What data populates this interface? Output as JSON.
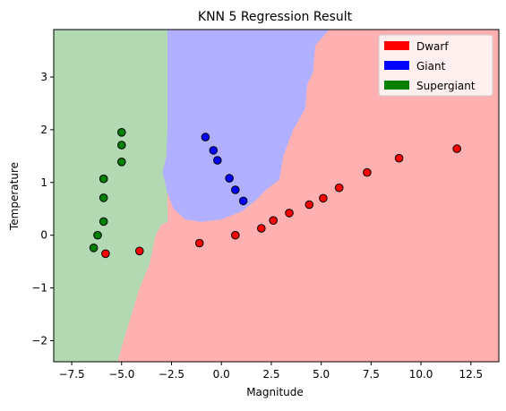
{
  "chart_data": {
    "type": "scatter",
    "title": "KNN 5 Regression Result",
    "xlabel": "Magnitude",
    "ylabel": "Temperature",
    "xlim": [
      -8.4,
      13.9
    ],
    "ylim": [
      -2.4,
      3.9
    ],
    "xticks": [
      -7.5,
      -5.0,
      -2.5,
      0.0,
      2.5,
      5.0,
      7.5,
      10.0,
      12.5
    ],
    "xtick_labels": [
      "−7.5",
      "−5.0",
      "−2.5",
      "0.0",
      "2.5",
      "5.0",
      "7.5",
      "10.0",
      "12.5"
    ],
    "yticks": [
      -2,
      -1,
      0,
      1,
      2,
      3
    ],
    "ytick_labels": [
      "−2",
      "−1",
      "0",
      "1",
      "2",
      "3"
    ],
    "grid": false,
    "legend_position": "top-right",
    "classes": [
      {
        "name": "Dwarf",
        "color": "#ff0000",
        "region_color": "#ffb0b0"
      },
      {
        "name": "Giant",
        "color": "#0000ff",
        "region_color": "#b0b0ff"
      },
      {
        "name": "Supergiant",
        "color": "#008000",
        "region_color": "#b3d9b3"
      }
    ],
    "regions": {
      "supergiant": [
        [
          -8.4,
          3.9
        ],
        [
          -2.7,
          3.9
        ],
        [
          -2.7,
          0.25
        ],
        [
          -3.0,
          0.2
        ],
        [
          -3.3,
          0.0
        ],
        [
          -3.6,
          -0.55
        ],
        [
          -4.1,
          -1.0
        ],
        [
          -4.5,
          -1.5
        ],
        [
          -4.9,
          -2.0
        ],
        [
          -5.2,
          -2.4
        ],
        [
          -8.4,
          -2.4
        ]
      ],
      "giant": [
        [
          -2.7,
          3.9
        ],
        [
          5.4,
          3.9
        ],
        [
          4.7,
          3.6
        ],
        [
          4.6,
          3.1
        ],
        [
          4.3,
          2.85
        ],
        [
          4.2,
          2.4
        ],
        [
          3.6,
          2.0
        ],
        [
          3.1,
          1.5
        ],
        [
          2.9,
          1.05
        ],
        [
          2.2,
          0.85
        ],
        [
          1.7,
          0.65
        ],
        [
          1.0,
          0.45
        ],
        [
          0.0,
          0.3
        ],
        [
          -1.0,
          0.25
        ],
        [
          -1.8,
          0.3
        ],
        [
          -2.4,
          0.5
        ],
        [
          -2.7,
          0.8
        ],
        [
          -2.95,
          1.2
        ],
        [
          -2.75,
          1.5
        ],
        [
          -2.7,
          2.0
        ]
      ]
    },
    "series": [
      {
        "name": "Dwarf",
        "points": [
          [
            -5.8,
            -0.35
          ],
          [
            -4.1,
            -0.3
          ],
          [
            -1.1,
            -0.15
          ],
          [
            0.7,
            0.0
          ],
          [
            2.0,
            0.13
          ],
          [
            2.6,
            0.28
          ],
          [
            3.4,
            0.42
          ],
          [
            4.4,
            0.58
          ],
          [
            5.1,
            0.7
          ],
          [
            5.9,
            0.9
          ],
          [
            7.3,
            1.19
          ],
          [
            8.9,
            1.46
          ],
          [
            11.8,
            1.64
          ]
        ]
      },
      {
        "name": "Giant",
        "points": [
          [
            -0.8,
            1.86
          ],
          [
            -0.4,
            1.61
          ],
          [
            -0.2,
            1.42
          ],
          [
            0.4,
            1.08
          ],
          [
            0.7,
            0.86
          ],
          [
            1.1,
            0.65
          ]
        ]
      },
      {
        "name": "Supergiant",
        "points": [
          [
            -5.0,
            1.95
          ],
          [
            -5.0,
            1.71
          ],
          [
            -5.0,
            1.39
          ],
          [
            -5.9,
            1.07
          ],
          [
            -5.9,
            0.71
          ],
          [
            -5.9,
            0.26
          ],
          [
            -6.2,
            0.0
          ],
          [
            -6.4,
            -0.24
          ]
        ]
      }
    ]
  }
}
